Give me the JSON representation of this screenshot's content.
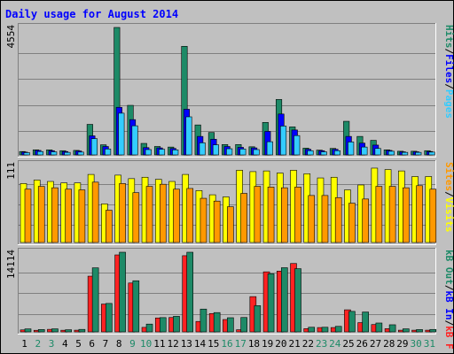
{
  "chart_data": {
    "type": "bar",
    "title": "Daily usage for August 2014",
    "categories": [
      "1",
      "2",
      "3",
      "4",
      "5",
      "6",
      "7",
      "8",
      "9",
      "10",
      "11",
      "12",
      "13",
      "14",
      "15",
      "16",
      "17",
      "18",
      "19",
      "20",
      "21",
      "22",
      "23",
      "24",
      "25",
      "26",
      "27",
      "28",
      "29",
      "30",
      "31"
    ],
    "weekend_days": [
      "2",
      "3",
      "9",
      "10",
      "16",
      "17",
      "23",
      "24",
      "30",
      "31"
    ],
    "colors": {
      "background": "#c0c0c0",
      "title": "#0000ff",
      "hits": "#1d8a67",
      "files": "#0000ff",
      "pages": "#33ccff",
      "visits": "#ffff00",
      "sites": "#ff9900",
      "kb_in": "#ff2222",
      "kb_out": "#1d8a67",
      "weekday_label": "#000000",
      "weekend_label": "#1d8a67"
    },
    "panels": [
      {
        "id": "hits",
        "ymax_label": "4554",
        "ymax": 4554,
        "legend": [
          {
            "text": "Pages",
            "color": "#33ccff"
          },
          {
            "text": "/",
            "color": "#000000"
          },
          {
            "text": "Files",
            "color": "#0000ff"
          },
          {
            "text": "/",
            "color": "#000000"
          },
          {
            "text": "Hits",
            "color": "#1d8a67"
          }
        ],
        "series": [
          {
            "name": "Hits",
            "color": "#1d8a67",
            "values": [
              120,
              180,
              180,
              150,
              160,
              1090,
              360,
              4554,
              1770,
              410,
              300,
              280,
              3880,
              1070,
              800,
              370,
              370,
              290,
              1160,
              1980,
              1000,
              240,
              170,
              230,
              1200,
              660,
              520,
              180,
              130,
              130,
              150
            ]
          },
          {
            "name": "Files",
            "color": "#0000ff",
            "values": [
              100,
              160,
              150,
              120,
              140,
              680,
              300,
              1700,
              1260,
              260,
              250,
              230,
              1630,
              660,
              560,
              300,
              270,
              250,
              840,
              1460,
              890,
              200,
              150,
              200,
              660,
              420,
              350,
              160,
              110,
              110,
              120
            ]
          },
          {
            "name": "Pages",
            "color": "#33ccff",
            "values": [
              80,
              120,
              110,
              90,
              100,
              580,
              210,
              1490,
              1040,
              190,
              200,
              180,
              1360,
              430,
              360,
              220,
              210,
              190,
              470,
              1030,
              690,
              150,
              110,
              150,
              460,
              280,
              230,
              130,
              90,
              90,
              100
            ]
          }
        ]
      },
      {
        "id": "visits",
        "ymax_label": "111",
        "ymax": 111,
        "legend": [
          {
            "text": "Visits",
            "color": "#ffff00"
          },
          {
            "text": "/",
            "color": "#000000"
          },
          {
            "text": "Sites",
            "color": "#ff9900"
          }
        ],
        "series": [
          {
            "name": "Visits",
            "color": "#ffff00",
            "values": [
              84,
              89,
              87,
              85,
              85,
              97,
              55,
              96,
              91,
              93,
              90,
              87,
              97,
              74,
              68,
              65,
              103,
              101,
              102,
              99,
              103,
              98,
              92,
              93,
              75,
              82,
              106,
              104,
              102,
              94,
              94
            ]
          },
          {
            "name": "Sites",
            "color": "#ff9900",
            "values": [
              76,
              80,
              78,
              76,
              75,
              86,
              46,
              84,
              71,
              80,
              83,
              76,
              77,
              63,
              59,
              51,
              70,
              80,
              79,
              78,
              79,
              67,
              67,
              64,
              56,
              62,
              80,
              80,
              78,
              81,
              76
            ]
          }
        ]
      },
      {
        "id": "kb",
        "ymax_label": "14114",
        "ymax": 14114,
        "legend": [
          {
            "text": "kB F",
            "color": "#ff2222"
          },
          {
            "text": "/",
            "color": "#000000"
          },
          {
            "text": "kB In",
            "color": "#0000ff"
          },
          {
            "text": "/",
            "color": "#000000"
          },
          {
            "text": "kB Out",
            "color": "#1d8a67"
          }
        ],
        "series": [
          {
            "name": "kB F",
            "color": "#ff2222",
            "values": [
              350,
              280,
              450,
              290,
              300,
              9870,
              4930,
              13640,
              8660,
              800,
              2470,
              2550,
              13500,
              1850,
              3250,
              2190,
              380,
              6250,
              10640,
              10770,
              12120,
              580,
              770,
              770,
              3910,
              1640,
              1300,
              570,
              300,
              300,
              300
            ]
          },
          {
            "name": "kB Out",
            "color": "#1d8a67",
            "values": [
              530,
              420,
              540,
              380,
              440,
              11350,
              5040,
              14114,
              9060,
              1380,
              2530,
              2760,
              14114,
              4040,
              3420,
              2510,
              2550,
              4650,
              10290,
              11370,
              11200,
              820,
              820,
              980,
              3630,
              3520,
              1570,
              1260,
              540,
              410,
              430
            ]
          }
        ]
      }
    ]
  }
}
